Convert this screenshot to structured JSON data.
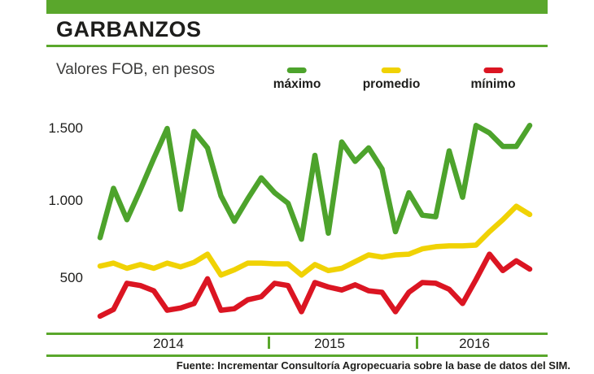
{
  "header": {
    "title": "GARBANZOS",
    "subtitle": "Valores FOB, en pesos"
  },
  "colors": {
    "accent_green": "#5aa72c",
    "series_green": "#4da32c",
    "series_yellow": "#f0d204",
    "series_red": "#db1522",
    "text_dark": "#1d1d1b"
  },
  "legend": [
    {
      "label": "máximo",
      "color": "#4da32c"
    },
    {
      "label": "promedio",
      "color": "#f0d204"
    },
    {
      "label": "mínimo",
      "color": "#db1522"
    }
  ],
  "chart_data": {
    "type": "line",
    "title": "GARBANZOS",
    "subtitle": "Valores FOB, en pesos",
    "xlabel": "",
    "ylabel": "pesos",
    "grid": false,
    "legend_position": "top",
    "ylim": [
      130,
      1650
    ],
    "y_ticks": [
      {
        "label": "1.500",
        "value": 1500
      },
      {
        "label": "1.000",
        "value": 1000
      },
      {
        "label": "500",
        "value": 500
      }
    ],
    "x_year_labels": [
      "2014",
      "2015",
      "2016"
    ],
    "x_frequency": "monthly, Jan 2014 – Sep 2016",
    "series": [
      {
        "name": "máximo",
        "color": "#4da32c",
        "values": [
          770,
          1100,
          890,
          1090,
          1300,
          1500,
          960,
          1480,
          1370,
          1050,
          880,
          1030,
          1170,
          1070,
          1000,
          760,
          1320,
          800,
          1410,
          1280,
          1370,
          1230,
          810,
          1070,
          920,
          910,
          1350,
          1040,
          1520,
          1470,
          1380,
          1380,
          1520
        ]
      },
      {
        "name": "promedio",
        "color": "#f0d204",
        "values": [
          580,
          600,
          565,
          590,
          565,
          600,
          575,
          605,
          660,
          520,
          555,
          600,
          600,
          595,
          595,
          520,
          590,
          550,
          565,
          610,
          655,
          640,
          655,
          660,
          695,
          710,
          715,
          715,
          720,
          810,
          890,
          980,
          925
        ]
      },
      {
        "name": "mínimo",
        "color": "#db1522",
        "values": [
          245,
          290,
          465,
          450,
          415,
          285,
          300,
          330,
          495,
          285,
          295,
          355,
          375,
          465,
          450,
          275,
          470,
          440,
          420,
          455,
          415,
          405,
          275,
          405,
          470,
          465,
          425,
          330,
          490,
          660,
          550,
          615,
          560
        ]
      }
    ]
  },
  "footer": {
    "source": "Fuente: Incrementar Consultoría Agropecuaria sobre la base de datos del SIM."
  }
}
